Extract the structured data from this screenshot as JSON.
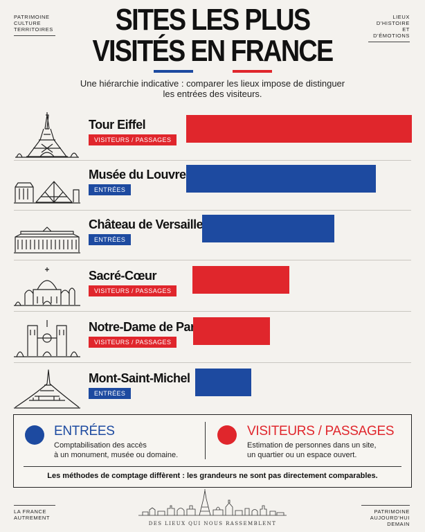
{
  "corners": {
    "top_left": [
      "PATRIMOINE",
      "CULTURE",
      "TERRITOIRES"
    ],
    "top_right": [
      "LIEUX",
      "D'HISTOIRE",
      "ET D'ÉMOTIONS"
    ],
    "bottom_left": [
      "LA FRANCE",
      "AUTREMENT"
    ],
    "bottom_right": [
      "PATRIMOINE",
      "AUJOURD'HUI",
      "DEMAIN"
    ]
  },
  "title": {
    "line1": "SITES LES PLUS",
    "line2": "VISITÉS EN FRANCE"
  },
  "flag_colors": [
    "#1d4aa0",
    "#f4f2ee",
    "#e0262c"
  ],
  "subtitle": {
    "line1": "Une hiérarchie indicative : comparer les lieux impose de distinguer",
    "line2": "les entrées des visiteurs."
  },
  "colors": {
    "entrees": "#1d4aa0",
    "visiteurs": "#e0262c"
  },
  "sites": [
    {
      "name": "Tour Eiffel",
      "tag": "VISITEURS / PASSAGES",
      "kind": "visiteurs",
      "icon": "eiffel-tower-icon",
      "relative_value": 100
    },
    {
      "name": "Musée du Louvre",
      "tag": "ENTRÉES",
      "kind": "entrees",
      "icon": "louvre-pyramid-icon",
      "relative_value": 84
    },
    {
      "name": "Château de Versailles",
      "tag": "ENTRÉES",
      "kind": "entrees",
      "icon": "versailles-palace-icon",
      "relative_value": 59
    },
    {
      "name": "Sacré-Cœur",
      "tag": "VISITEURS / PASSAGES",
      "kind": "visiteurs",
      "icon": "sacre-coeur-basilica-icon",
      "relative_value": 43
    },
    {
      "name": "Notre-Dame de Paris",
      "tag": "VISITEURS / PASSAGES",
      "kind": "visiteurs",
      "icon": "notre-dame-cathedral-icon",
      "relative_value": 34
    },
    {
      "name": "Mont-Saint-Michel",
      "tag": "ENTRÉES",
      "kind": "entrees",
      "icon": "mont-saint-michel-icon",
      "relative_value": 25
    }
  ],
  "legend": {
    "entrees": {
      "title": "ENTRÉES",
      "line1": "Comptabilisation des accès",
      "line2": "à un monument, musée ou domaine."
    },
    "visiteurs": {
      "title": "VISITEURS / PASSAGES",
      "line1": "Estimation de personnes dans un site,",
      "line2": "un quartier ou un espace ouvert."
    },
    "note": "Les méthodes de comptage diffèrent : les grandeurs ne sont pas directement comparables."
  },
  "footer": {
    "text": "DES LIEUX QUI NOUS RASSEMBLENT",
    "icon": "paris-skyline-icon"
  }
}
